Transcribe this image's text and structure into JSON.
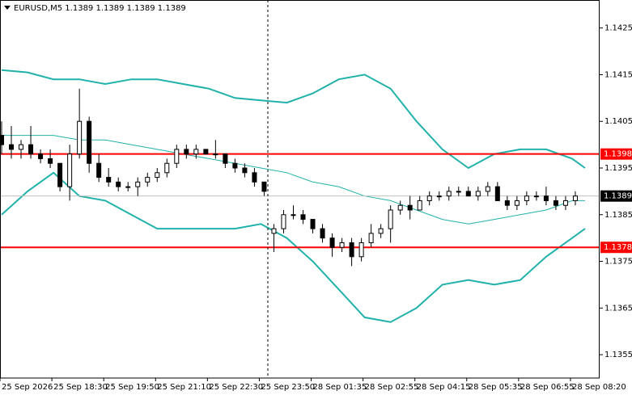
{
  "chart_data": {
    "type": "candlestick",
    "title": "EURUSD,M5  1.1389 1.1389 1.1389 1.1389",
    "x": [
      0,
      3,
      6,
      9,
      12,
      15,
      18,
      21,
      24,
      27,
      30,
      33,
      36,
      39,
      42,
      45,
      48,
      51,
      54,
      57,
      60,
      63,
      66,
      69,
      72,
      75,
      78,
      81,
      84,
      87,
      90,
      93,
      96,
      99,
      102,
      105,
      108,
      111,
      114,
      117,
      120,
      123,
      126,
      129,
      132,
      135,
      138,
      141,
      144,
      147,
      150,
      153,
      156,
      159,
      162,
      165,
      168,
      171,
      174,
      177
    ],
    "open": [
      1.1402,
      1.14,
      1.1399,
      1.14,
      1.1398,
      1.1397,
      1.1396,
      1.1391,
      1.1398,
      1.1405,
      1.1396,
      1.1393,
      1.1392,
      1.1391,
      1.1391,
      1.1392,
      1.1393,
      1.1394,
      1.1396,
      1.1399,
      1.1398,
      1.1399,
      1.1398,
      1.1398,
      1.1396,
      1.1395,
      1.1394,
      1.1392,
      1.1381,
      1.1382,
      1.1385,
      1.1385,
      1.1384,
      1.1382,
      1.138,
      1.1378,
      1.1379,
      1.1376,
      1.1379,
      1.1381,
      1.1382,
      1.1386,
      1.1387,
      1.1386,
      1.1388,
      1.1389,
      1.1389,
      1.139,
      1.139,
      1.1389,
      1.139,
      1.1391,
      1.1388,
      1.1387,
      1.1388,
      1.1389,
      1.1389,
      1.1388,
      1.1387,
      1.1388
    ],
    "high": [
      1.1405,
      1.1404,
      1.1401,
      1.1404,
      1.1399,
      1.1399,
      1.1396,
      1.14,
      1.1412,
      1.1406,
      1.1398,
      1.1395,
      1.1393,
      1.1392,
      1.1393,
      1.1394,
      1.1395,
      1.1397,
      1.14,
      1.14,
      1.14,
      1.1399,
      1.1401,
      1.1398,
      1.1397,
      1.1396,
      1.1395,
      1.1392,
      1.1383,
      1.1386,
      1.1387,
      1.1386,
      1.1384,
      1.1383,
      1.1381,
      1.138,
      1.138,
      1.138,
      1.1383,
      1.1383,
      1.1387,
      1.1388,
      1.1389,
      1.1389,
      1.139,
      1.139,
      1.1391,
      1.1391,
      1.1391,
      1.1391,
      1.1392,
      1.1392,
      1.1389,
      1.1389,
      1.139,
      1.139,
      1.1391,
      1.1389,
      1.1389,
      1.139
    ],
    "low": [
      1.1398,
      1.1397,
      1.1397,
      1.1397,
      1.1396,
      1.1395,
      1.139,
      1.1388,
      1.1397,
      1.1394,
      1.1392,
      1.1391,
      1.139,
      1.139,
      1.1389,
      1.1391,
      1.1392,
      1.1393,
      1.1395,
      1.1397,
      1.1397,
      1.1398,
      1.1397,
      1.1395,
      1.1394,
      1.1393,
      1.1391,
      1.1389,
      1.1377,
      1.1381,
      1.1384,
      1.1383,
      1.1381,
      1.1379,
      1.1376,
      1.1377,
      1.1374,
      1.1375,
      1.1378,
      1.138,
      1.1379,
      1.1385,
      1.1384,
      1.1386,
      1.1387,
      1.1388,
      1.1388,
      1.1389,
      1.1389,
      1.1388,
      1.1389,
      1.1388,
      1.1386,
      1.1386,
      1.1387,
      1.1388,
      1.1387,
      1.1386,
      1.1386,
      1.1387
    ],
    "close": [
      1.14,
      1.1399,
      1.14,
      1.1398,
      1.1397,
      1.1396,
      1.1391,
      1.1398,
      1.1405,
      1.1396,
      1.1393,
      1.1392,
      1.1391,
      1.1391,
      1.1392,
      1.1393,
      1.1394,
      1.1396,
      1.1399,
      1.1398,
      1.1399,
      1.1398,
      1.1398,
      1.1396,
      1.1395,
      1.1394,
      1.1392,
      1.139,
      1.1382,
      1.1385,
      1.1385,
      1.1384,
      1.1382,
      1.138,
      1.1378,
      1.1379,
      1.1376,
      1.1379,
      1.1381,
      1.1382,
      1.1386,
      1.1387,
      1.1386,
      1.1388,
      1.1389,
      1.1389,
      1.139,
      1.139,
      1.1389,
      1.139,
      1.1391,
      1.1388,
      1.1387,
      1.1388,
      1.1389,
      1.1389,
      1.1388,
      1.1387,
      1.1388,
      1.1389
    ],
    "up_color": "#ffffff",
    "down_color": "#000000",
    "bands": {
      "color": "#20b2aa",
      "x": [
        0,
        8,
        16,
        24,
        32,
        40,
        48,
        56,
        64,
        72,
        80,
        88,
        96,
        104,
        112,
        120,
        128,
        136,
        144,
        152,
        160,
        168,
        176,
        180
      ],
      "upper": [
        1.1416,
        1.14155,
        1.1414,
        1.1414,
        1.1413,
        1.1414,
        1.1414,
        1.1413,
        1.1412,
        1.141,
        1.14095,
        1.1409,
        1.1411,
        1.1414,
        1.1415,
        1.1412,
        1.1405,
        1.1399,
        1.1395,
        1.1398,
        1.1399,
        1.1399,
        1.1397,
        1.1395
      ],
      "middle": [
        1.1402,
        1.1402,
        1.1402,
        1.1401,
        1.1401,
        1.14,
        1.1399,
        1.1398,
        1.1397,
        1.1396,
        1.1395,
        1.1394,
        1.1392,
        1.1391,
        1.1389,
        1.1388,
        1.1386,
        1.1384,
        1.1383,
        1.1384,
        1.1385,
        1.1386,
        1.1388,
        1.1388
      ],
      "lower": [
        1.1385,
        1.139,
        1.1394,
        1.1389,
        1.1388,
        1.1385,
        1.1382,
        1.1382,
        1.1382,
        1.1382,
        1.1383,
        1.138,
        1.1375,
        1.1369,
        1.1363,
        1.1362,
        1.1365,
        1.137,
        1.1371,
        1.137,
        1.1371,
        1.1376,
        1.138,
        1.1382
      ]
    },
    "levels": [
      {
        "value": 1.1398,
        "color": "#ff0000"
      },
      {
        "value": 1.1378,
        "color": "#ff0000"
      }
    ],
    "last_price": 1.1389,
    "xlim": [
      0,
      185
    ],
    "xticks": [
      {
        "value": 0,
        "label": "25 Sep 2026"
      },
      {
        "value": 16,
        "label": "25 Sep 18:30"
      },
      {
        "value": 32,
        "label": "25 Sep 19:50"
      },
      {
        "value": 48,
        "label": "25 Sep 21:10"
      },
      {
        "value": 64,
        "label": "25 Sep 22:30"
      },
      {
        "value": 80,
        "label": "25 Sep 23:50"
      },
      {
        "value": 96,
        "label": "28 Sep 01:35"
      },
      {
        "value": 112,
        "label": "28 Sep 02:55"
      },
      {
        "value": 128,
        "label": "28 Sep 04:15"
      },
      {
        "value": 144,
        "label": "28 Sep 05:35"
      },
      {
        "value": 160,
        "label": "28 Sep 06:55"
      },
      {
        "value": 176,
        "label": "28 Sep 08:20"
      }
    ],
    "ylim": [
      1.135,
      1.1431
    ],
    "yticks": [
      1.1425,
      1.1415,
      1.1405,
      1.1395,
      1.1385,
      1.1375,
      1.1365,
      1.1355
    ],
    "grid": false
  }
}
